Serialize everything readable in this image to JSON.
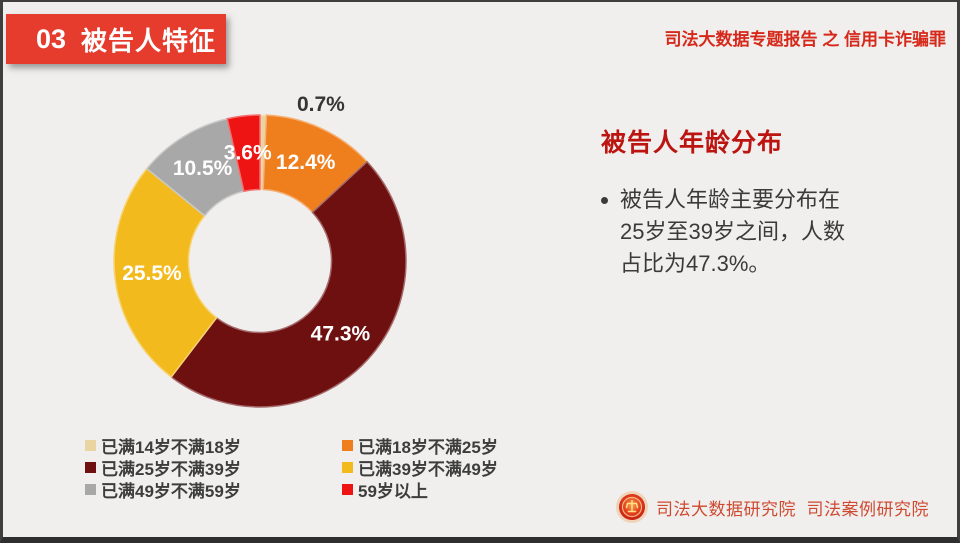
{
  "page": {
    "background": "#F0EFED",
    "frame_color": "#3E3E3E"
  },
  "header": {
    "section_number": "03",
    "section_title": "被告人特征",
    "banner_color": "#E53C2E",
    "report_title": "司法大数据专题报告 之 信用卡诈骗罪",
    "report_title_color": "#D6291B"
  },
  "panel": {
    "title": "被告人年龄分布",
    "title_color": "#BC1410",
    "bullet_lines": [
      "被告人年龄主要分布在",
      "25岁至39岁之间，人数",
      "占比为47.3%。"
    ]
  },
  "chart_data": {
    "type": "pie",
    "subtype": "donut",
    "title": "被告人年龄分布",
    "categories": [
      "已满14岁不满18岁",
      "已满18岁不满25岁",
      "已满25岁不满39岁",
      "已满39岁不满49岁",
      "已满49岁不满59岁",
      "59岁以上"
    ],
    "values": [
      0.7,
      12.4,
      47.3,
      25.5,
      10.5,
      3.6
    ],
    "data_labels": [
      "0.7%",
      "12.4%",
      "47.3%",
      "25.5%",
      "10.5%",
      "3.6%"
    ],
    "colors": [
      "#EAD5A2",
      "#EF7E1D",
      "#6E0F10",
      "#F2BA1D",
      "#A8A8A8",
      "#EE1413"
    ],
    "start_angle_deg": 0,
    "direction": "clockwise",
    "inner_radius_ratio": 0.49,
    "legend_position": "bottom-left",
    "label_color_inside": "#FFFFFF",
    "label_color_outside": "#353535"
  },
  "footer": {
    "org_text": "司法大数据研究院  司法案例研究院",
    "text_color": "#CE4A31",
    "emblem_icon": "national-emblem-seal"
  }
}
